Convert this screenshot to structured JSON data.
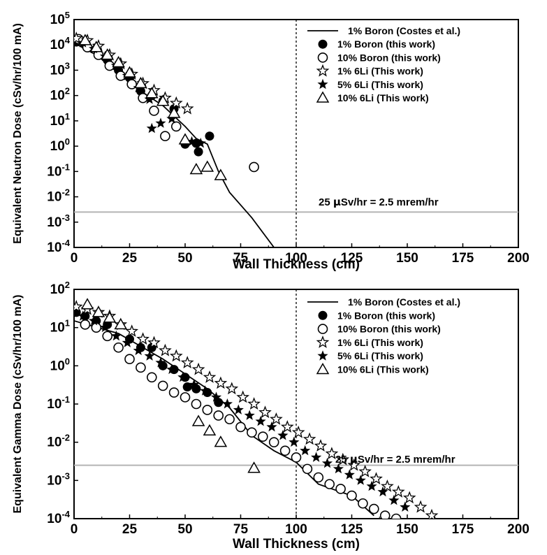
{
  "colors": {
    "axis": "#000000",
    "threshold_line": "#b4b4b4",
    "marker": "#000000",
    "background": "#ffffff"
  },
  "chart_data": [
    {
      "type": "scatter",
      "xlabel": "Wall Thickness (cm)",
      "ylabel": "Equivalent Neutron Dose (cSv/hr/100 mA)",
      "xlim": [
        0,
        200
      ],
      "ylim_log10": [
        -4,
        5
      ],
      "y_scale": "log",
      "x_ticks": [
        "0",
        "25",
        "50",
        "75",
        "100",
        "125",
        "150",
        "175",
        "200"
      ],
      "y_ticks": [
        {
          "base": "10",
          "exp": "-4"
        },
        {
          "base": "10",
          "exp": "-3"
        },
        {
          "base": "10",
          "exp": "-2"
        },
        {
          "base": "10",
          "exp": "-1"
        },
        {
          "base": "10",
          "exp": "0"
        },
        {
          "base": "10",
          "exp": "1"
        },
        {
          "base": "10",
          "exp": "2"
        },
        {
          "base": "10",
          "exp": "3"
        },
        {
          "base": "10",
          "exp": "4"
        },
        {
          "base": "10",
          "exp": "5"
        }
      ],
      "vline_x": 100,
      "threshold": {
        "y": 0.0025,
        "label_parts": [
          "25 ",
          "μ",
          "Sv/hr = 2.5 mrem/hr"
        ]
      },
      "legend_position": "top-right",
      "series": [
        {
          "name": "1% Boron (Costes et al.)",
          "marker": "line",
          "points": [
            [
              0,
              12000
            ],
            [
              10,
              4000
            ],
            [
              20,
              800
            ],
            [
              30,
              150
            ],
            [
              40,
              40
            ],
            [
              50,
              6
            ],
            [
              55,
              2
            ],
            [
              60,
              1.2
            ],
            [
              65,
              0.1
            ],
            [
              70,
              0.015
            ],
            [
              80,
              0.0015
            ],
            [
              90,
              0.0001
            ]
          ]
        },
        {
          "name": "1% Boron (this work)",
          "marker": "filled-circle",
          "points": [
            [
              1,
              13000
            ],
            [
              5,
              10000
            ],
            [
              10,
              7000
            ],
            [
              15,
              2500
            ],
            [
              20,
              1000
            ],
            [
              25,
              500
            ],
            [
              30,
              150
            ],
            [
              35,
              100
            ],
            [
              40,
              60
            ],
            [
              45,
              30
            ],
            [
              50,
              1.2
            ],
            [
              55,
              1.3
            ],
            [
              56,
              0.6
            ],
            [
              61,
              2.5
            ]
          ]
        },
        {
          "name": "10% Boron (this work)",
          "marker": "open-circle",
          "points": [
            [
              2,
              17000
            ],
            [
              6,
              8000
            ],
            [
              11,
              4000
            ],
            [
              16,
              1500
            ],
            [
              21,
              600
            ],
            [
              26,
              280
            ],
            [
              31,
              80
            ],
            [
              36,
              25
            ],
            [
              41,
              2.5
            ],
            [
              46,
              6
            ],
            [
              81,
              0.15
            ]
          ]
        },
        {
          "name": "1% 6Li (This work)",
          "marker": "open-star",
          "points": [
            [
              1,
              18000
            ],
            [
              6,
              15000
            ],
            [
              11,
              9000
            ],
            [
              16,
              4000
            ],
            [
              21,
              1800
            ],
            [
              26,
              700
            ],
            [
              31,
              300
            ],
            [
              36,
              160
            ],
            [
              41,
              80
            ],
            [
              46,
              50
            ],
            [
              51,
              30
            ]
          ]
        },
        {
          "name": "5% 6Li (This work)",
          "marker": "filled-star",
          "points": [
            [
              4,
              12000
            ],
            [
              9,
              7000
            ],
            [
              14,
              3500
            ],
            [
              19,
              1500
            ],
            [
              24,
              600
            ],
            [
              29,
              200
            ],
            [
              34,
              70
            ],
            [
              35,
              5
            ],
            [
              39,
              8
            ],
            [
              44,
              12
            ],
            [
              53,
              1.5
            ],
            [
              57,
              1.3
            ]
          ]
        },
        {
          "name": "10% 6Li (This work)",
          "marker": "open-triangle",
          "points": [
            [
              5,
              15000
            ],
            [
              10,
              8000
            ],
            [
              15,
              4000
            ],
            [
              20,
              2000
            ],
            [
              25,
              800
            ],
            [
              30,
              300
            ],
            [
              35,
              120
            ],
            [
              40,
              60
            ],
            [
              45,
              20
            ],
            [
              50,
              1.8
            ],
            [
              55,
              0.12
            ],
            [
              60,
              0.15
            ],
            [
              66,
              0.07
            ]
          ]
        }
      ]
    },
    {
      "type": "scatter",
      "xlabel": "Wall Thickness (cm)",
      "ylabel": "Equivalent Gamma Dose (cSv/hr/100 mA)",
      "xlim": [
        0,
        200
      ],
      "ylim_log10": [
        -4,
        2
      ],
      "y_scale": "log",
      "x_ticks": [
        "0",
        "25",
        "50",
        "75",
        "100",
        "125",
        "150",
        "175",
        "200"
      ],
      "y_ticks": [
        {
          "base": "10",
          "exp": "-4"
        },
        {
          "base": "10",
          "exp": "-3"
        },
        {
          "base": "10",
          "exp": "-2"
        },
        {
          "base": "10",
          "exp": "-1"
        },
        {
          "base": "10",
          "exp": "0"
        },
        {
          "base": "10",
          "exp": "1"
        },
        {
          "base": "10",
          "exp": "2"
        }
      ],
      "vline_x": 100,
      "threshold": {
        "y": 0.0025,
        "label_parts": [
          "25 ",
          "μ",
          "Sv/hr = 2.5 mrem/hr"
        ]
      },
      "legend_position": "top-right",
      "series": [
        {
          "name": "1% Boron (Costes et al.)",
          "marker": "line",
          "points": [
            [
              0,
              15
            ],
            [
              20,
              7
            ],
            [
              40,
              1.5
            ],
            [
              60,
              0.25
            ],
            [
              70,
              0.08
            ],
            [
              80,
              0.015
            ],
            [
              90,
              0.006
            ],
            [
              100,
              0.003
            ],
            [
              110,
              0.0008
            ],
            [
              120,
              0.0005
            ],
            [
              125,
              0.0004
            ],
            [
              135,
              0.00012
            ]
          ]
        },
        {
          "name": "1% Boron (this work)",
          "marker": "filled-circle",
          "points": [
            [
              1,
              25
            ],
            [
              5,
              20
            ],
            [
              10,
              15
            ],
            [
              15,
              12
            ],
            [
              25,
              5
            ],
            [
              30,
              3
            ],
            [
              35,
              3
            ],
            [
              40,
              1
            ],
            [
              45,
              0.8
            ],
            [
              50,
              0.5
            ],
            [
              51,
              0.28
            ],
            [
              55,
              0.25
            ],
            [
              60,
              0.2
            ],
            [
              65,
              0.11
            ]
          ]
        },
        {
          "name": "10% Boron (this work)",
          "marker": "open-circle",
          "points": [
            [
              5,
              12
            ],
            [
              10,
              10
            ],
            [
              15,
              6
            ],
            [
              20,
              3
            ],
            [
              25,
              1.5
            ],
            [
              30,
              0.9
            ],
            [
              35,
              0.5
            ],
            [
              40,
              0.3
            ],
            [
              45,
              0.2
            ],
            [
              50,
              0.15
            ],
            [
              55,
              0.1
            ],
            [
              60,
              0.07
            ],
            [
              65,
              0.05
            ],
            [
              70,
              0.04
            ],
            [
              75,
              0.025
            ],
            [
              80,
              0.018
            ],
            [
              85,
              0.014
            ],
            [
              90,
              0.01
            ],
            [
              95,
              0.006
            ],
            [
              100,
              0.004
            ],
            [
              105,
              0.002
            ],
            [
              110,
              0.0012
            ],
            [
              115,
              0.0008
            ],
            [
              120,
              0.0006
            ],
            [
              125,
              0.0004
            ],
            [
              130,
              0.00025
            ],
            [
              135,
              0.00018
            ],
            [
              140,
              0.00012
            ],
            [
              145,
              0.0001
            ]
          ]
        },
        {
          "name": "1% 6Li (This work)",
          "marker": "open-star",
          "points": [
            [
              1,
              35
            ],
            [
              6,
              30
            ],
            [
              11,
              25
            ],
            [
              16,
              20
            ],
            [
              21,
              12
            ],
            [
              26,
              8
            ],
            [
              31,
              5
            ],
            [
              36,
              4
            ],
            [
              41,
              2.5
            ],
            [
              46,
              1.8
            ],
            [
              51,
              1.2
            ],
            [
              56,
              0.8
            ],
            [
              61,
              0.5
            ],
            [
              66,
              0.35
            ],
            [
              71,
              0.25
            ],
            [
              76,
              0.15
            ],
            [
              81,
              0.1
            ],
            [
              86,
              0.06
            ],
            [
              91,
              0.04
            ],
            [
              96,
              0.025
            ],
            [
              101,
              0.018
            ],
            [
              106,
              0.012
            ],
            [
              111,
              0.008
            ],
            [
              116,
              0.005
            ],
            [
              121,
              0.0035
            ],
            [
              126,
              0.0025
            ],
            [
              131,
              0.0017
            ],
            [
              136,
              0.0011
            ],
            [
              141,
              0.0007
            ],
            [
              146,
              0.0005
            ],
            [
              151,
              0.00035
            ],
            [
              156,
              0.0002
            ],
            [
              161,
              0.00012
            ]
          ]
        },
        {
          "name": "5% 6Li (This work)",
          "marker": "filled-star",
          "points": [
            [
              4,
              20
            ],
            [
              9,
              15
            ],
            [
              14,
              10
            ],
            [
              19,
              6
            ],
            [
              24,
              4
            ],
            [
              29,
              2.5
            ],
            [
              34,
              1.8
            ],
            [
              39,
              1.2
            ],
            [
              44,
              0.8
            ],
            [
              49,
              0.5
            ],
            [
              54,
              0.32
            ],
            [
              59,
              0.22
            ],
            [
              64,
              0.15
            ],
            [
              69,
              0.1
            ],
            [
              74,
              0.07
            ],
            [
              79,
              0.05
            ],
            [
              84,
              0.035
            ],
            [
              89,
              0.025
            ],
            [
              94,
              0.015
            ],
            [
              99,
              0.01
            ],
            [
              104,
              0.006
            ],
            [
              109,
              0.004
            ],
            [
              114,
              0.0028
            ],
            [
              119,
              0.002
            ],
            [
              124,
              0.0014
            ],
            [
              129,
              0.001
            ],
            [
              134,
              0.0007
            ],
            [
              139,
              0.0005
            ],
            [
              144,
              0.0003
            ],
            [
              149,
              0.0002
            ]
          ]
        },
        {
          "name": "10% 6Li (This work)",
          "marker": "open-triangle",
          "points": [
            [
              6,
              40
            ],
            [
              11,
              25
            ],
            [
              16,
              18
            ],
            [
              21,
              12
            ],
            [
              56,
              0.035
            ],
            [
              61,
              0.02
            ],
            [
              66,
              0.01
            ],
            [
              81,
              0.0021
            ]
          ]
        }
      ]
    }
  ]
}
